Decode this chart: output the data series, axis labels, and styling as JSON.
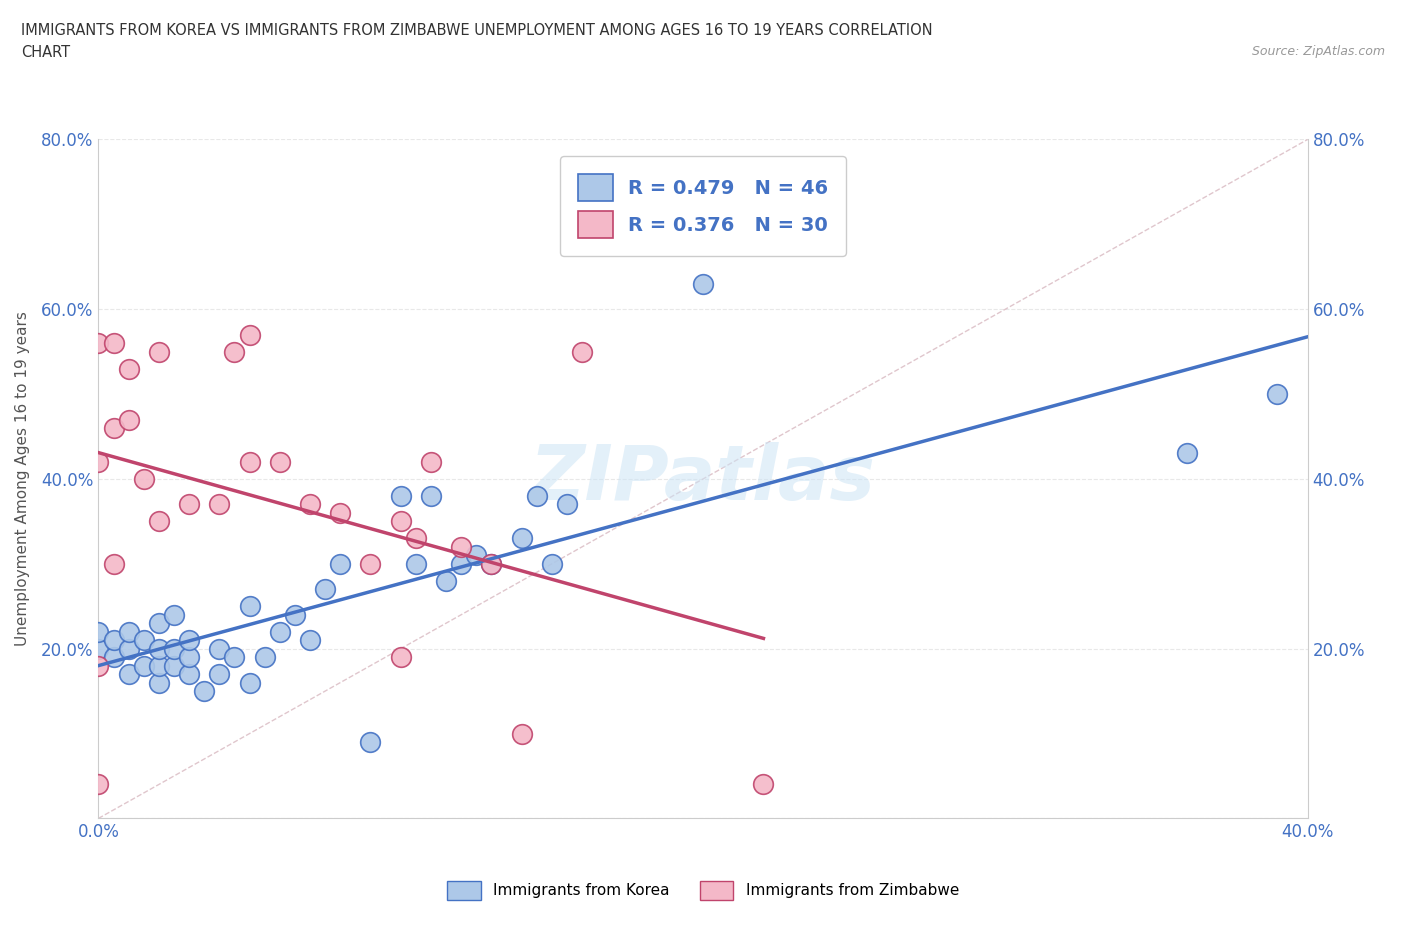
{
  "title_line1": "IMMIGRANTS FROM KOREA VS IMMIGRANTS FROM ZIMBABWE UNEMPLOYMENT AMONG AGES 16 TO 19 YEARS CORRELATION",
  "title_line2": "CHART",
  "source_text": "Source: ZipAtlas.com",
  "ylabel": "Unemployment Among Ages 16 to 19 years",
  "xlim": [
    0.0,
    0.4
  ],
  "ylim": [
    0.0,
    0.8
  ],
  "xticks": [
    0.0,
    0.05,
    0.1,
    0.15,
    0.2,
    0.25,
    0.3,
    0.35,
    0.4
  ],
  "yticks": [
    0.0,
    0.2,
    0.4,
    0.6,
    0.8
  ],
  "korea_color": "#adc8e8",
  "korea_edge_color": "#4472c4",
  "zimbabwe_color": "#f4b8c8",
  "zimbabwe_edge_color": "#c0446c",
  "korea_trend_color": "#4472c4",
  "zimbabwe_trend_color": "#c0446c",
  "diagonal_color": "#d8b8c0",
  "tick_color": "#4472c4",
  "background_color": "#ffffff",
  "grid_color": "#e8e8e8",
  "title_color": "#333333",
  "watermark": "ZIPatlas",
  "legend_korea_R": "0.479",
  "legend_korea_N": "46",
  "legend_zimbabwe_R": "0.376",
  "legend_zimbabwe_N": "30",
  "korea_x": [
    0.0,
    0.0,
    0.005,
    0.005,
    0.01,
    0.01,
    0.01,
    0.015,
    0.015,
    0.02,
    0.02,
    0.02,
    0.02,
    0.025,
    0.025,
    0.025,
    0.03,
    0.03,
    0.03,
    0.035,
    0.04,
    0.04,
    0.045,
    0.05,
    0.05,
    0.055,
    0.06,
    0.065,
    0.07,
    0.075,
    0.08,
    0.09,
    0.1,
    0.105,
    0.11,
    0.115,
    0.12,
    0.125,
    0.13,
    0.14,
    0.145,
    0.15,
    0.155,
    0.2,
    0.36,
    0.39
  ],
  "korea_y": [
    0.2,
    0.22,
    0.19,
    0.21,
    0.17,
    0.2,
    0.22,
    0.18,
    0.21,
    0.16,
    0.18,
    0.2,
    0.23,
    0.18,
    0.2,
    0.24,
    0.17,
    0.19,
    0.21,
    0.15,
    0.17,
    0.2,
    0.19,
    0.16,
    0.25,
    0.19,
    0.22,
    0.24,
    0.21,
    0.27,
    0.3,
    0.09,
    0.38,
    0.3,
    0.38,
    0.28,
    0.3,
    0.31,
    0.3,
    0.33,
    0.38,
    0.3,
    0.37,
    0.63,
    0.43,
    0.5
  ],
  "zimbabwe_x": [
    0.0,
    0.0,
    0.0,
    0.0,
    0.005,
    0.005,
    0.005,
    0.01,
    0.01,
    0.015,
    0.02,
    0.02,
    0.03,
    0.04,
    0.045,
    0.05,
    0.05,
    0.06,
    0.07,
    0.08,
    0.09,
    0.1,
    0.1,
    0.105,
    0.11,
    0.12,
    0.13,
    0.14,
    0.16,
    0.22
  ],
  "zimbabwe_y": [
    0.04,
    0.18,
    0.42,
    0.56,
    0.3,
    0.46,
    0.56,
    0.47,
    0.53,
    0.4,
    0.35,
    0.55,
    0.37,
    0.37,
    0.55,
    0.42,
    0.57,
    0.42,
    0.37,
    0.36,
    0.3,
    0.19,
    0.35,
    0.33,
    0.42,
    0.32,
    0.3,
    0.1,
    0.55,
    0.04
  ]
}
